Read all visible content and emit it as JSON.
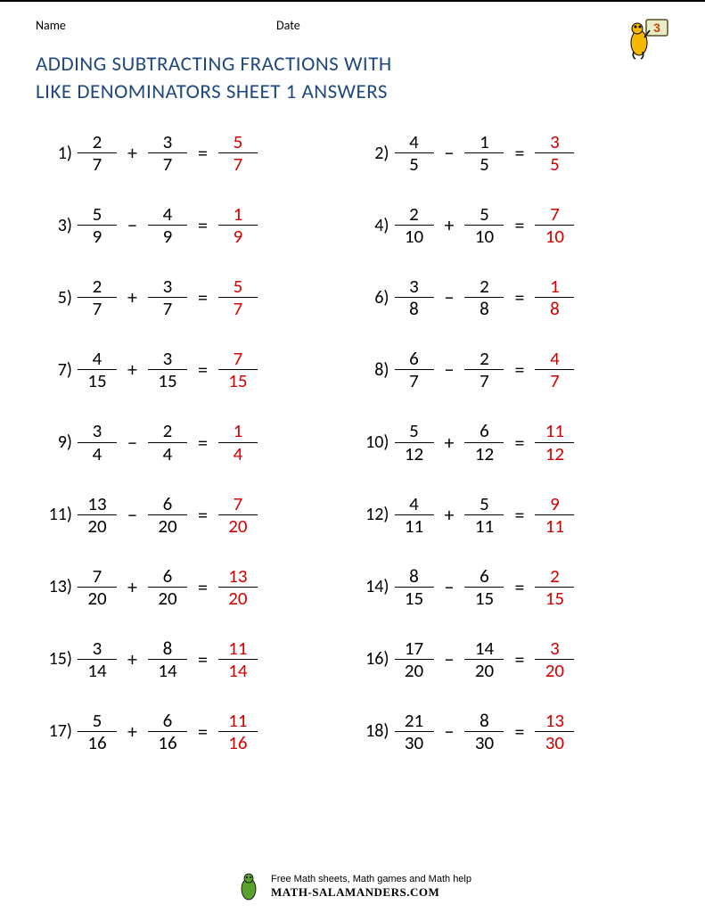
{
  "header": {
    "name_label": "Name",
    "date_label": "Date"
  },
  "title_line1": "ADDING SUBTRACTING FRACTIONS WITH",
  "title_line2": "LIKE DENOMINATORS SHEET 1 ANSWERS",
  "title_color": "#1f497d",
  "answer_color": "#d40000",
  "text_color": "#000000",
  "background_color": "#ffffff",
  "font_family": "Calibri, Arial, sans-serif",
  "title_fontsize": 23,
  "body_fontsize": 21,
  "problems": [
    {
      "n": "1)",
      "a_num": "2",
      "a_den": "7",
      "op": "+",
      "b_num": "3",
      "b_den": "7",
      "r_num": "5",
      "r_den": "7"
    },
    {
      "n": "2)",
      "a_num": "4",
      "a_den": "5",
      "op": "−",
      "b_num": "1",
      "b_den": "5",
      "r_num": "3",
      "r_den": "5"
    },
    {
      "n": "3)",
      "a_num": "5",
      "a_den": "9",
      "op": "−",
      "b_num": "4",
      "b_den": "9",
      "r_num": "1",
      "r_den": "9"
    },
    {
      "n": "4)",
      "a_num": "2",
      "a_den": "10",
      "op": "+",
      "b_num": "5",
      "b_den": "10",
      "r_num": "7",
      "r_den": "10"
    },
    {
      "n": "5)",
      "a_num": "2",
      "a_den": "7",
      "op": "+",
      "b_num": "3",
      "b_den": "7",
      "r_num": "5",
      "r_den": "7"
    },
    {
      "n": "6)",
      "a_num": "3",
      "a_den": "8",
      "op": "−",
      "b_num": "2",
      "b_den": "8",
      "r_num": "1",
      "r_den": "8"
    },
    {
      "n": "7)",
      "a_num": "4",
      "a_den": "15",
      "op": "+",
      "b_num": "3",
      "b_den": "15",
      "r_num": "7",
      "r_den": "15"
    },
    {
      "n": "8)",
      "a_num": "6",
      "a_den": "7",
      "op": "−",
      "b_num": "2",
      "b_den": "7",
      "r_num": "4",
      "r_den": "7"
    },
    {
      "n": "9)",
      "a_num": "3",
      "a_den": "4",
      "op": "−",
      "b_num": "2",
      "b_den": "4",
      "r_num": "1",
      "r_den": "4"
    },
    {
      "n": "10)",
      "a_num": "5",
      "a_den": "12",
      "op": "+",
      "b_num": "6",
      "b_den": "12",
      "r_num": "11",
      "r_den": "12"
    },
    {
      "n": "11)",
      "a_num": "13",
      "a_den": "20",
      "op": "−",
      "b_num": "6",
      "b_den": "20",
      "r_num": "7",
      "r_den": "20"
    },
    {
      "n": "12)",
      "a_num": "4",
      "a_den": "11",
      "op": "+",
      "b_num": "5",
      "b_den": "11",
      "r_num": "9",
      "r_den": "11"
    },
    {
      "n": "13)",
      "a_num": "7",
      "a_den": "20",
      "op": "+",
      "b_num": "6",
      "b_den": "20",
      "r_num": "13",
      "r_den": "20"
    },
    {
      "n": "14)",
      "a_num": "8",
      "a_den": "15",
      "op": "−",
      "b_num": "6",
      "b_den": "15",
      "r_num": "2",
      "r_den": "15"
    },
    {
      "n": "15)",
      "a_num": "3",
      "a_den": "14",
      "op": "+",
      "b_num": "8",
      "b_den": "14",
      "r_num": "11",
      "r_den": "14"
    },
    {
      "n": "16)",
      "a_num": "17",
      "a_den": "20",
      "op": "−",
      "b_num": "14",
      "b_den": "20",
      "r_num": "3",
      "r_den": "20"
    },
    {
      "n": "17)",
      "a_num": "5",
      "a_den": "16",
      "op": "+",
      "b_num": "6",
      "b_den": "16",
      "r_num": "11",
      "r_den": "16"
    },
    {
      "n": "18)",
      "a_num": "21",
      "a_den": "30",
      "op": "−",
      "b_num": "8",
      "b_den": "30",
      "r_num": "13",
      "r_den": "30"
    }
  ],
  "footer": {
    "tagline": "Free Math sheets, Math games and Math help",
    "site": "MATH-SALAMANDERS.COM"
  },
  "logo": {
    "grade": "3",
    "body_color": "#f5b800",
    "board_bg": "#e8ecc8",
    "board_text": "#c94a00",
    "outline": "#000000"
  }
}
